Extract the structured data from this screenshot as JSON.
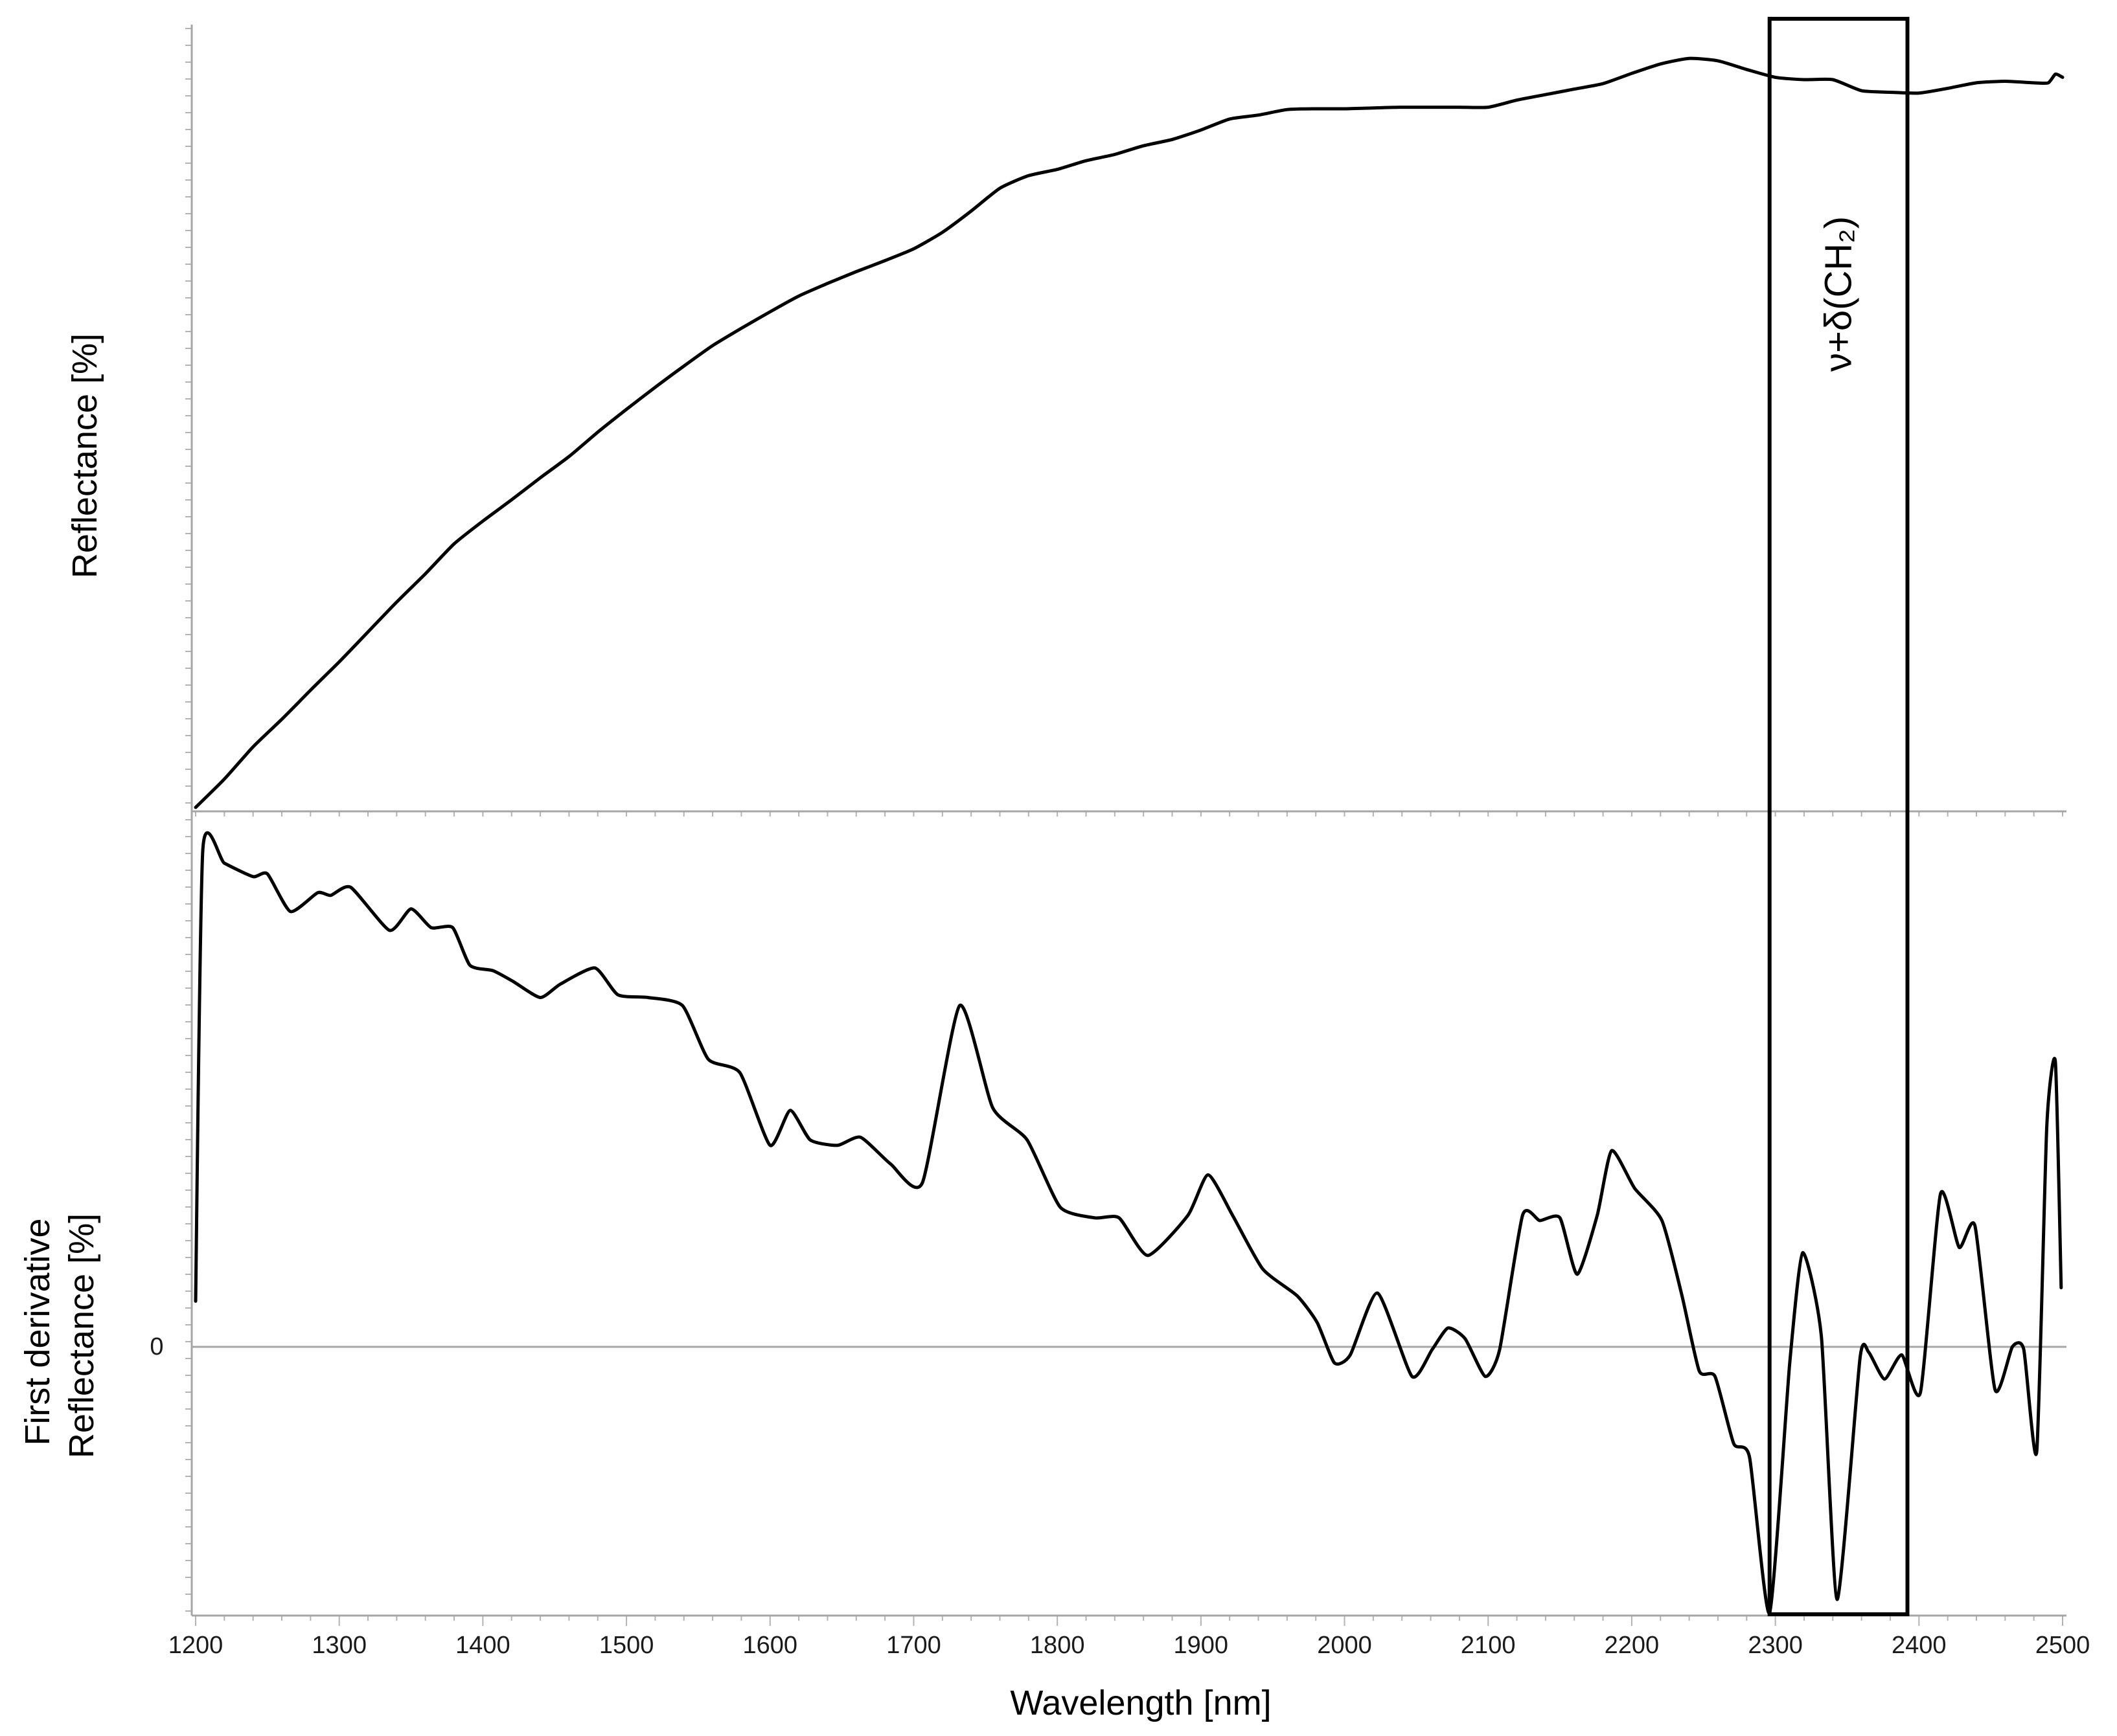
{
  "chart_data": [
    {
      "type": "line",
      "ylabel": "Reflectance [%]",
      "xlim": [
        1200,
        2500
      ],
      "ylim": [
        0,
        100
      ],
      "grid": false,
      "line_color": "#000000",
      "x": [
        1200,
        1220,
        1240,
        1260,
        1280,
        1300,
        1320,
        1340,
        1360,
        1380,
        1400,
        1420,
        1440,
        1460,
        1480,
        1500,
        1520,
        1540,
        1560,
        1580,
        1600,
        1620,
        1640,
        1660,
        1680,
        1700,
        1720,
        1740,
        1760,
        1780,
        1800,
        1820,
        1840,
        1860,
        1880,
        1900,
        1920,
        1940,
        1960,
        1980,
        2000,
        2020,
        2040,
        2060,
        2080,
        2100,
        2120,
        2140,
        2160,
        2180,
        2200,
        2220,
        2240,
        2260,
        2280,
        2300,
        2320,
        2340,
        2360,
        2380,
        2400,
        2420,
        2440,
        2460,
        2480,
        2490,
        2495,
        2500
      ],
      "series": [
        {
          "values": [
            0.5,
            4.1,
            8.2,
            11.7,
            15.4,
            19.0,
            22.8,
            26.6,
            30.2,
            34.0,
            36.9,
            39.6,
            42.4,
            45.1,
            48.2,
            51.1,
            53.9,
            56.6,
            59.2,
            61.4,
            63.5,
            65.5,
            67.1,
            68.6,
            70.0,
            71.5,
            73.6,
            76.3,
            79.2,
            80.8,
            81.6,
            82.7,
            83.5,
            84.6,
            85.4,
            86.6,
            88.0,
            88.5,
            89.2,
            89.3,
            89.3,
            89.4,
            89.5,
            89.5,
            89.5,
            89.5,
            90.4,
            91.1,
            91.8,
            92.5,
            93.8,
            95.0,
            95.7,
            95.4,
            94.3,
            93.3,
            93.0,
            93.0,
            91.6,
            91.4,
            91.3,
            91.9,
            92.6,
            92.8,
            92.6,
            92.6,
            93.7,
            93.3
          ]
        }
      ]
    },
    {
      "type": "line",
      "ylabel_lines": [
        "First derivative",
        "Reflectance [%]"
      ],
      "ylabel_colors": [
        "#8a8a8a",
        "#000000"
      ],
      "xlabel": "Wavelength [nm]",
      "xticks": [
        1200,
        1300,
        1400,
        1500,
        1600,
        1700,
        1800,
        1900,
        2000,
        2100,
        2200,
        2300,
        2400,
        2500
      ],
      "yticks": [
        0
      ],
      "xlim": [
        1200,
        2500
      ],
      "ylim": [
        -1,
        2
      ],
      "grid": false,
      "zero_line": true,
      "line_color": "#000000",
      "x": [
        1200,
        1205,
        1220,
        1240,
        1250,
        1266,
        1285,
        1294,
        1308,
        1335,
        1350,
        1364,
        1379,
        1391,
        1407,
        1421,
        1440,
        1454,
        1478,
        1494,
        1515,
        1539,
        1557,
        1579,
        1600,
        1614,
        1628,
        1647,
        1663,
        1684,
        1706,
        1732,
        1755,
        1779,
        1802,
        1826,
        1843,
        1863,
        1891,
        1905,
        1922,
        1943,
        1967,
        1981,
        1993,
        2004,
        2023,
        2047,
        2061,
        2072,
        2084,
        2098,
        2108,
        2124,
        2136,
        2150,
        2162,
        2176,
        2186,
        2202,
        2221,
        2235,
        2247,
        2258,
        2271,
        2282,
        2296,
        2310,
        2319,
        2332,
        2343,
        2359,
        2365,
        2376,
        2388,
        2401,
        2415,
        2428,
        2439,
        2453,
        2465,
        2473,
        2482,
        2489,
        2495,
        2499
      ],
      "series": [
        {
          "values": [
            0.17,
            1.85,
            1.8,
            1.75,
            1.76,
            1.62,
            1.69,
            1.68,
            1.71,
            1.55,
            1.63,
            1.56,
            1.56,
            1.42,
            1.4,
            1.36,
            1.3,
            1.35,
            1.41,
            1.31,
            1.3,
            1.27,
            1.07,
            1.02,
            0.75,
            0.88,
            0.77,
            0.75,
            0.78,
            0.68,
            0.61,
            1.27,
            0.89,
            0.77,
            0.52,
            0.48,
            0.48,
            0.34,
            0.49,
            0.64,
            0.49,
            0.29,
            0.19,
            0.09,
            -0.06,
            -0.03,
            0.2,
            -0.11,
            -0.01,
            0.07,
            0.03,
            -0.11,
            -0.01,
            0.49,
            0.47,
            0.48,
            0.27,
            0.49,
            0.73,
            0.59,
            0.47,
            0.19,
            -0.09,
            -0.11,
            -0.36,
            -0.41,
            -0.99,
            -0.06,
            0.35,
            0.04,
            -0.94,
            -0.04,
            -0.02,
            -0.12,
            -0.03,
            -0.17,
            0.57,
            0.37,
            0.45,
            -0.16,
            0.0,
            -0.01,
            -0.39,
            0.82,
            1.06,
            0.22
          ]
        }
      ]
    }
  ],
  "annotations": [
    {
      "x_range": [
        2296,
        2392
      ],
      "label": "ν+δ(CH₂)",
      "box_color": "#000000"
    }
  ]
}
